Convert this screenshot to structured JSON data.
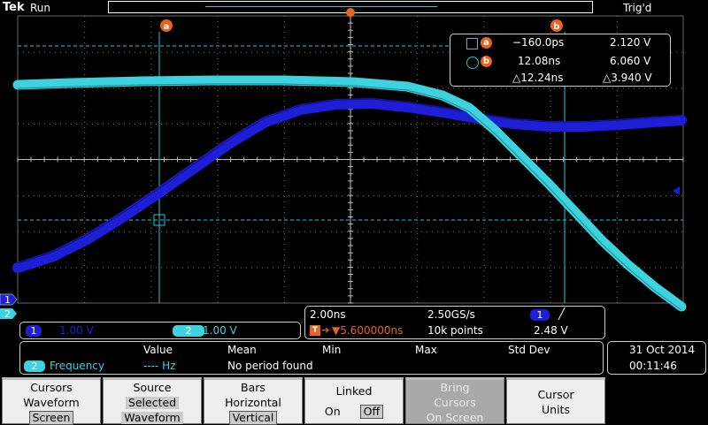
{
  "status": {
    "brand": "Tek",
    "run_state": "Run",
    "trigger_state": "Trig'd"
  },
  "cursor_labels": {
    "a": "a",
    "b": "b"
  },
  "cursor_readout": {
    "a": {
      "time": "−160.0ps",
      "volt": "2.120 V"
    },
    "b": {
      "time": "12.08ns",
      "volt": "6.060 V"
    },
    "delta": {
      "time": "△12.24ns",
      "volt": "△3.940 V"
    }
  },
  "channel_markers": {
    "ch1": "1",
    "ch2": "2"
  },
  "vertical": {
    "ch1_num": "1",
    "ch1_scale": "1.00 V",
    "ch2_num": "2",
    "ch2_scale": "1.00 V"
  },
  "horizontal": {
    "timebase": "2.00ns",
    "sample_rate": "2.50GS/s",
    "trigger_pos": "▼5.600000ns",
    "record_length": "10k points",
    "trig_source": "1",
    "trig_slope": "╱",
    "trig_level": "2.48 V"
  },
  "measurement": {
    "headers": [
      "Value",
      "Mean",
      "Min",
      "Max",
      "Std Dev"
    ],
    "channel": "2",
    "label": "Frequency",
    "value": "---- Hz",
    "status": "No period found"
  },
  "datetime": {
    "date": "31 Oct  2014",
    "time": "00:11:46"
  },
  "menu": [
    {
      "line1": "Cursors",
      "line2": "Waveform",
      "line3": "Screen"
    },
    {
      "line1": "Source",
      "line2": "Selected",
      "line3": "Waveform"
    },
    {
      "line1": "Bars",
      "line2": "Horizontal",
      "line3": "Vertical"
    },
    {
      "line1": "Linked",
      "on": "On",
      "off": "Off"
    },
    {
      "line1": "Bring",
      "line2": "Cursors",
      "line3": "On Screen"
    },
    {
      "line1": "Cursor",
      "line2": "Units"
    }
  ],
  "colors": {
    "ch1": "#1e1ed6",
    "ch2": "#3cd2de",
    "cursor": "#20c8d8",
    "accent": "#e8641e"
  }
}
